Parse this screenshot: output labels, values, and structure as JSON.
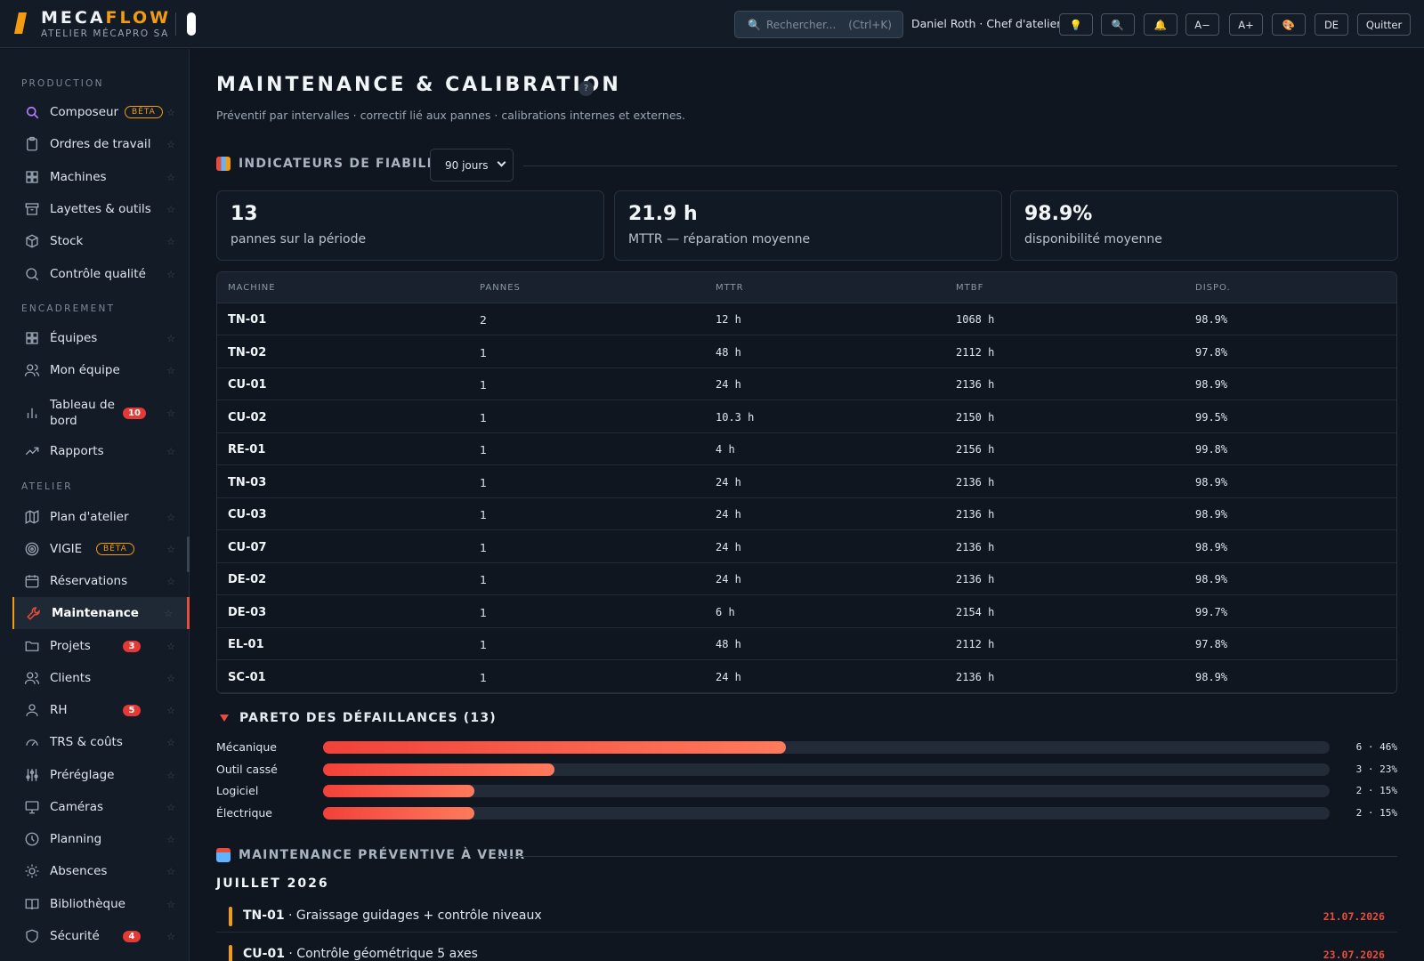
{
  "brand": {
    "name_part1": "MECA",
    "name_part2": "FLOW",
    "subtitle": "ATELIER MÉCAPRO SA"
  },
  "header": {
    "search_placeholder": "Rechercher...",
    "search_shortcut": "(Ctrl+K)",
    "user": "Daniel Roth · Chef d'atelier",
    "buttons": {
      "idea": "💡",
      "search": "🔍",
      "notifications": "🔔",
      "font_smaller": "A−",
      "font_larger": "A+",
      "theme": "🎨",
      "language": "DE",
      "quit": "Quitter"
    }
  },
  "sidebar": {
    "sections": {
      "production": "PRODUCTION",
      "encadrement": "ENCADREMENT",
      "atelier": "ATELIER"
    },
    "items": [
      {
        "label": "Composeur",
        "icon": "composer-icon",
        "badge": "BÊTA"
      },
      {
        "label": "Ordres de travail",
        "icon": "clipboard-icon"
      },
      {
        "label": "Machines",
        "icon": "grid-icon"
      },
      {
        "label": "Layettes & outils",
        "icon": "archive-icon"
      },
      {
        "label": "Stock",
        "icon": "box-icon"
      },
      {
        "label": "Contrôle qualité",
        "icon": "search-icon"
      },
      {
        "label": "Équipes",
        "icon": "grid-icon"
      },
      {
        "label": "Mon équipe",
        "icon": "users-icon"
      },
      {
        "label": "Tableau de bord",
        "icon": "bar-chart-icon",
        "count": "10"
      },
      {
        "label": "Rapports",
        "icon": "trend-icon"
      },
      {
        "label": "Plan d'atelier",
        "icon": "map-icon"
      },
      {
        "label": "VIGIE",
        "icon": "target-icon",
        "badge": "BÊTA"
      },
      {
        "label": "Réservations",
        "icon": "calendar-icon"
      },
      {
        "label": "Maintenance",
        "icon": "wrench-icon"
      },
      {
        "label": "Projets",
        "icon": "folder-icon",
        "count": "3"
      },
      {
        "label": "Clients",
        "icon": "users-icon"
      },
      {
        "label": "RH",
        "icon": "user-icon",
        "count": "5"
      },
      {
        "label": "TRS & coûts",
        "icon": "gauge-icon"
      },
      {
        "label": "Préréglage",
        "icon": "sliders-icon"
      },
      {
        "label": "Caméras",
        "icon": "monitor-icon"
      },
      {
        "label": "Planning",
        "icon": "clock-icon"
      },
      {
        "label": "Absences",
        "icon": "sun-icon"
      },
      {
        "label": "Bibliothèque",
        "icon": "book-icon"
      },
      {
        "label": "Sécurité",
        "icon": "shield-icon",
        "count": "4"
      }
    ],
    "star": "☆"
  },
  "page": {
    "title": "MAINTENANCE & CALIBRATION",
    "help": "?",
    "subtitle": "Préventif par intervalles · correctif lié aux pannes · calibrations internes et externes."
  },
  "reliability": {
    "title": "INDICATEURS DE FIABILITÉ",
    "period": "90 jours",
    "kpis": [
      {
        "value": "13",
        "label": "pannes sur la période"
      },
      {
        "value": "21.9 h",
        "label": "MTTR — réparation moyenne"
      },
      {
        "value": "98.9%",
        "label": "disponibilité moyenne"
      }
    ],
    "columns": [
      "MACHINE",
      "PANNES",
      "MTTR",
      "MTBF",
      "DISPO."
    ],
    "rows": [
      [
        "TN-01",
        "2",
        "12 h",
        "1068 h",
        "98.9%"
      ],
      [
        "TN-02",
        "1",
        "48 h",
        "2112 h",
        "97.8%"
      ],
      [
        "CU-01",
        "1",
        "24 h",
        "2136 h",
        "98.9%"
      ],
      [
        "CU-02",
        "1",
        "10.3 h",
        "2150 h",
        "99.5%"
      ],
      [
        "RE-01",
        "1",
        "4 h",
        "2156 h",
        "99.8%"
      ],
      [
        "TN-03",
        "1",
        "24 h",
        "2136 h",
        "98.9%"
      ],
      [
        "CU-03",
        "1",
        "24 h",
        "2136 h",
        "98.9%"
      ],
      [
        "CU-07",
        "1",
        "24 h",
        "2136 h",
        "98.9%"
      ],
      [
        "DE-02",
        "1",
        "24 h",
        "2136 h",
        "98.9%"
      ],
      [
        "DE-03",
        "1",
        "6 h",
        "2154 h",
        "99.7%"
      ],
      [
        "EL-01",
        "1",
        "48 h",
        "2112 h",
        "97.8%"
      ],
      [
        "SC-01",
        "1",
        "24 h",
        "2136 h",
        "98.9%"
      ]
    ]
  },
  "pareto": {
    "title": "PARETO DES DÉFAILLANCES (13)",
    "items": [
      {
        "label": "Mécanique",
        "value": "6 · 46%",
        "fraction": 0.46
      },
      {
        "label": "Outil cassé",
        "value": "3 · 23%",
        "fraction": 0.23
      },
      {
        "label": "Logiciel",
        "value": "2 · 15%",
        "fraction": 0.15
      },
      {
        "label": "Électrique",
        "value": "2 · 15%",
        "fraction": 0.15
      }
    ]
  },
  "preventive": {
    "title": "MAINTENANCE PRÉVENTIVE À VENIR",
    "month": "JUILLET 2026",
    "items": [
      {
        "machine": "TN-01",
        "task": " · Graissage guidages + contrôle niveaux",
        "date": "21.07.2026"
      },
      {
        "machine": "CU-01",
        "task": " · Contrôle géométrique 5 axes",
        "date": "23.07.2026"
      }
    ]
  },
  "colors": {
    "accent": "#f39c12",
    "danger": "#e74c3c",
    "background": "#0f1620",
    "panel": "#131b26"
  }
}
